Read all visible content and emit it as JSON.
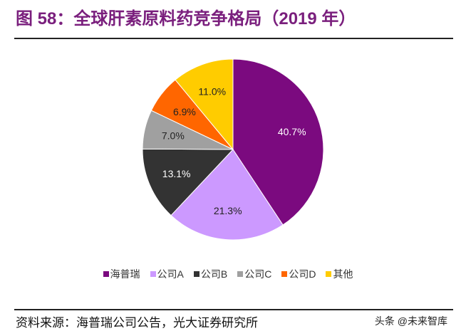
{
  "title": "图 58：全球肝素原料药竞争格局（2019 年）",
  "source": "资料来源：海普瑞公司公告，光大证券研究所",
  "watermark": "头条 @未来智库",
  "chart_data": {
    "type": "pie",
    "title": "图 58：全球肝素原料药竞争格局（2019 年）",
    "categories": [
      "海普瑞",
      "公司A",
      "公司B",
      "公司C",
      "公司D",
      "其他"
    ],
    "values": [
      40.7,
      21.3,
      13.1,
      7.0,
      6.9,
      11.0
    ],
    "labels": [
      "40.7%",
      "21.3%",
      "13.1%",
      "7.0%",
      "6.9%",
      "11.0%"
    ],
    "colors": [
      "#7b0a7f",
      "#cc99ff",
      "#333333",
      "#a0a0a0",
      "#ff6600",
      "#ffcc00"
    ],
    "label_colors": [
      "#ffffff",
      "#222222",
      "#ffffff",
      "#222222",
      "#222222",
      "#222222"
    ],
    "start": "12 o'clock, clockwise",
    "legend": "bottom"
  }
}
